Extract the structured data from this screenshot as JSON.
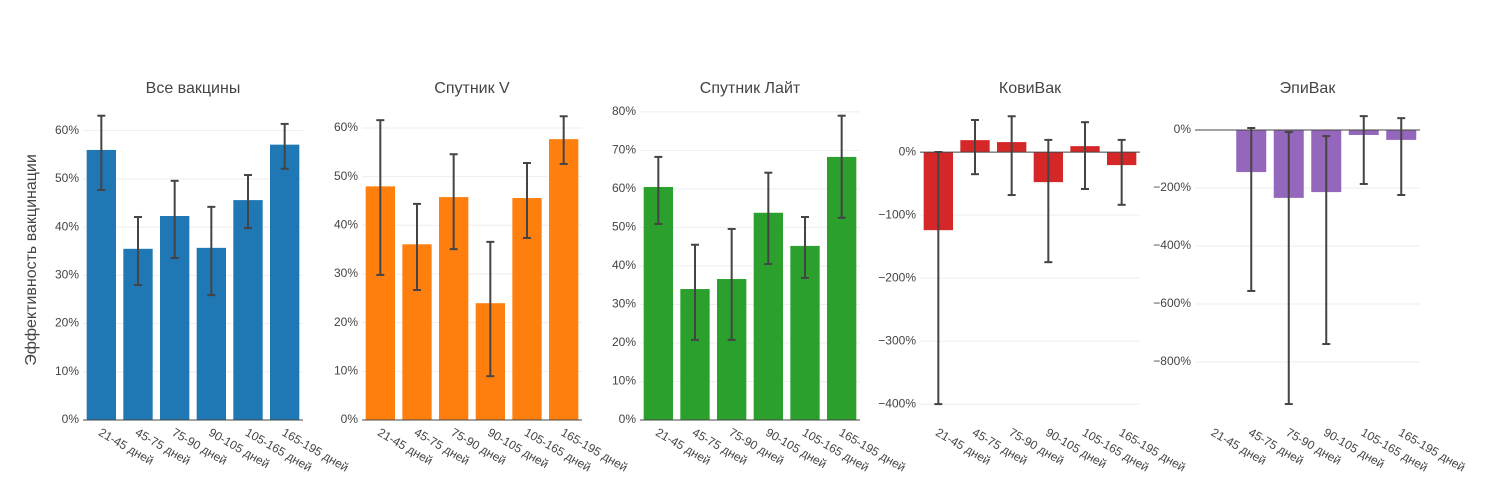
{
  "ylabel": "Эффективность вакцинации",
  "chart_data": [
    {
      "type": "bar",
      "title": "Все вакцины",
      "color": "#1f77b4",
      "categories": [
        "21-45 дней",
        "45-75 дней",
        "75-90 дней",
        "90-105 дней",
        "105-165 дней",
        "165-195 дней"
      ],
      "values": [
        56.0,
        35.5,
        42.3,
        35.7,
        45.6,
        57.1
      ],
      "error_minus": [
        8.3,
        7.5,
        8.7,
        9.8,
        5.8,
        5.0
      ],
      "error_plus": [
        7.1,
        6.6,
        7.3,
        8.5,
        5.2,
        4.3
      ],
      "ylim": [
        0,
        64.7
      ],
      "yticks": [
        {
          "value": 0,
          "label": "0%"
        },
        {
          "value": 10,
          "label": "10%"
        },
        {
          "value": 20,
          "label": "20%"
        },
        {
          "value": 30,
          "label": "30%"
        },
        {
          "value": 40,
          "label": "40%"
        },
        {
          "value": 50,
          "label": "50%"
        },
        {
          "value": 60,
          "label": "60%"
        }
      ],
      "grid": true
    },
    {
      "type": "bar",
      "title": "Спутник V",
      "color": "#ff7f0e",
      "categories": [
        "21-45 дней",
        "45-75 дней",
        "75-90 дней",
        "90-105 дней",
        "105-165 дней",
        "165-195 дней"
      ],
      "values": [
        48.0,
        36.1,
        45.8,
        24.0,
        45.6,
        57.7
      ],
      "error_minus": [
        18.2,
        9.4,
        10.7,
        15.0,
        8.2,
        5.1
      ],
      "error_plus": [
        13.6,
        8.3,
        8.8,
        12.6,
        7.2,
        4.7
      ],
      "ylim": [
        0,
        64.1
      ],
      "yticks": [
        {
          "value": 0,
          "label": "0%"
        },
        {
          "value": 10,
          "label": "10%"
        },
        {
          "value": 20,
          "label": "20%"
        },
        {
          "value": 30,
          "label": "30%"
        },
        {
          "value": 40,
          "label": "40%"
        },
        {
          "value": 50,
          "label": "50%"
        },
        {
          "value": 60,
          "label": "60%"
        }
      ],
      "grid": true
    },
    {
      "type": "bar",
      "title": "Спутник Лайт",
      "color": "#2ca02c",
      "categories": [
        "21-45 дней",
        "45-75 дней",
        "75-90 дней",
        "90-105 дней",
        "105-165 дней",
        "165-195 дней"
      ],
      "values": [
        60.5,
        34.0,
        36.6,
        53.8,
        45.2,
        68.3
      ],
      "error_minus": [
        9.6,
        13.2,
        15.8,
        13.3,
        8.3,
        15.8
      ],
      "error_plus": [
        7.8,
        11.5,
        13.0,
        10.4,
        7.5,
        10.7
      ],
      "ylim": [
        0,
        81
      ],
      "yticks": [
        {
          "value": 0,
          "label": "0%"
        },
        {
          "value": 10,
          "label": "10%"
        },
        {
          "value": 20,
          "label": "20%"
        },
        {
          "value": 30,
          "label": "30%"
        },
        {
          "value": 40,
          "label": "40%"
        },
        {
          "value": 50,
          "label": "50%"
        },
        {
          "value": 60,
          "label": "60%"
        },
        {
          "value": 70,
          "label": "70%"
        },
        {
          "value": 80,
          "label": "80%"
        }
      ],
      "grid": true
    },
    {
      "type": "bar",
      "title": "КовиВак",
      "color": "#d62728",
      "categories": [
        "21-45 дней",
        "45-75 дней",
        "75-90 дней",
        "90-105 дней",
        "105-165 дней",
        "165-195 дней"
      ],
      "values": [
        -123.8,
        19.0,
        15.9,
        -47.6,
        9.5,
        -20.6
      ],
      "error_minus": [
        276,
        54,
        84,
        127,
        68,
        63
      ],
      "error_plus": [
        124,
        32,
        41,
        67,
        38,
        40
      ],
      "ylim": [
        -425,
        70
      ],
      "yticks": [
        {
          "value": -400,
          "label": "−400%"
        },
        {
          "value": -300,
          "label": "−300%"
        },
        {
          "value": -200,
          "label": "−200%"
        },
        {
          "value": -100,
          "label": "−100%"
        },
        {
          "value": 0,
          "label": "0%"
        }
      ],
      "grid": true
    },
    {
      "type": "bar",
      "title": "ЭпиВак",
      "color": "#9467bd",
      "categories": [
        "21-45 дней",
        "45-75 дней",
        "75-90 дней",
        "90-105 дней",
        "105-165 дней",
        "165-195 дней"
      ],
      "values": [
        null,
        -145,
        -234,
        -214,
        -17,
        -34
      ],
      "error_minus": [
        null,
        410,
        711,
        524,
        169,
        190
      ],
      "error_plus": [
        null,
        152,
        227,
        193,
        65,
        75
      ],
      "ylim": [
        -1000,
        76
      ],
      "yticks": [
        {
          "value": -800,
          "label": "−800%"
        },
        {
          "value": -600,
          "label": "−600%"
        },
        {
          "value": -400,
          "label": "−400%"
        },
        {
          "value": -200,
          "label": "−200%"
        },
        {
          "value": 0,
          "label": "0%"
        }
      ],
      "grid": true
    }
  ]
}
